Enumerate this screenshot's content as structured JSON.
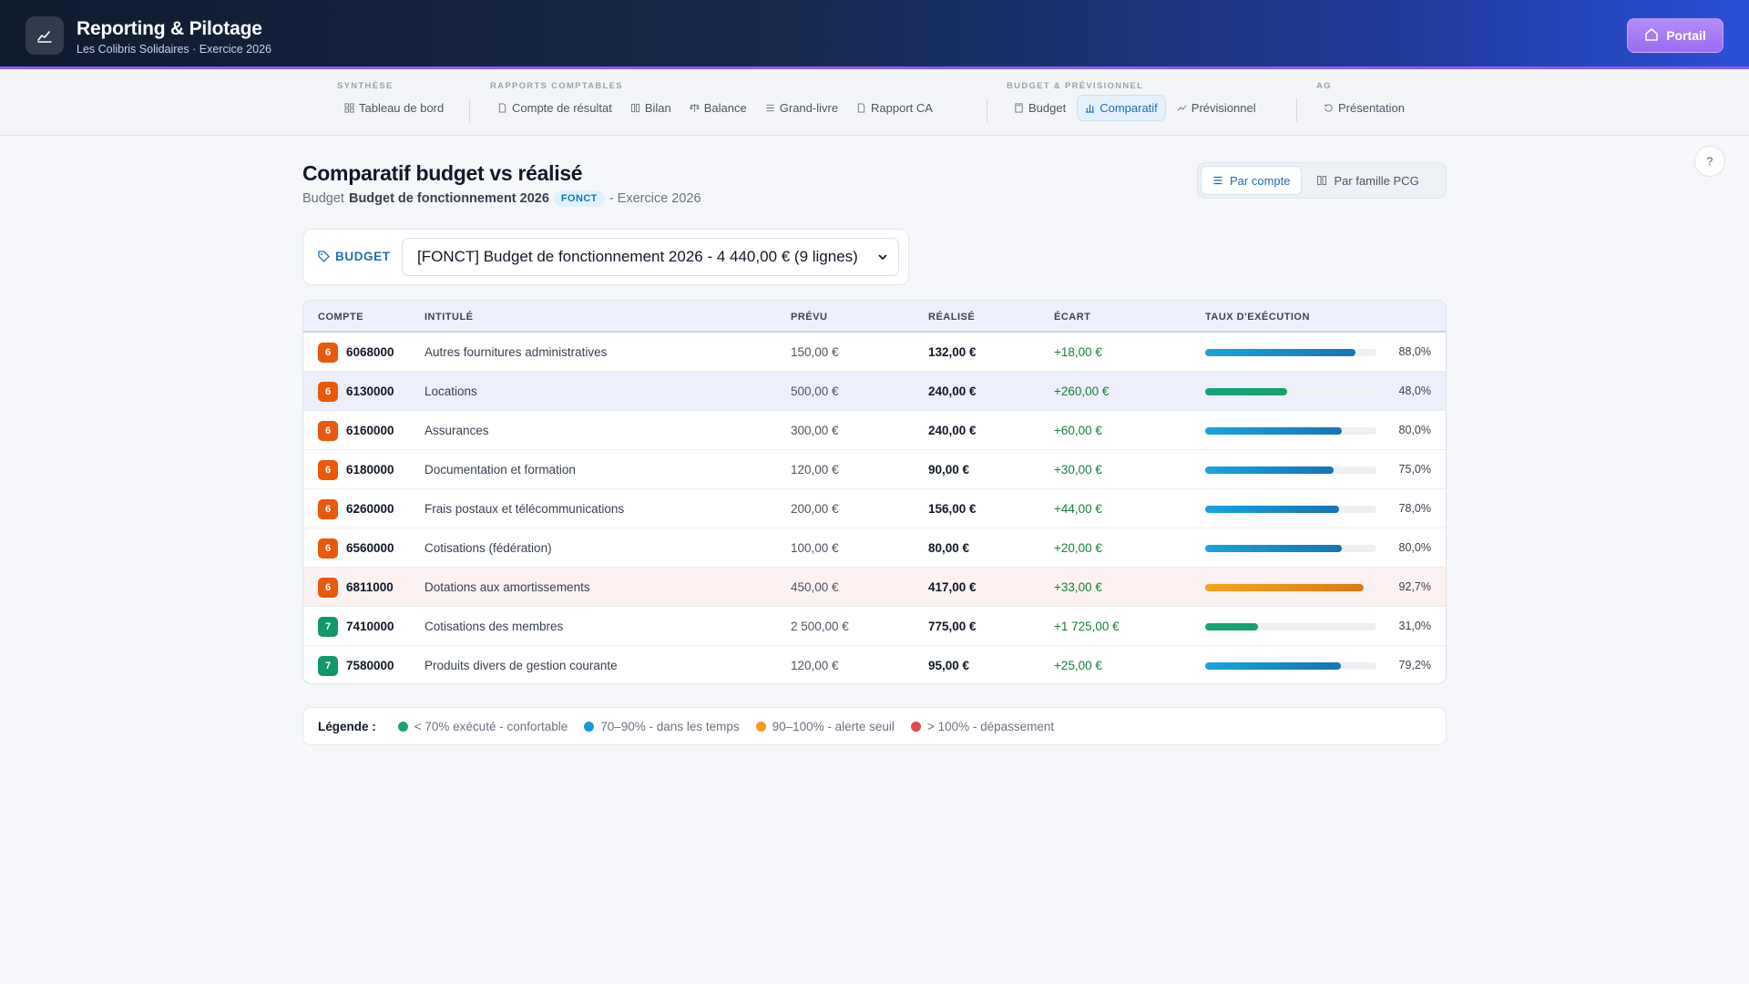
{
  "header": {
    "title": "Reporting & Pilotage",
    "subtitle": "Les Colibris Solidaires · Exercice 2026",
    "portal_label": "Portail"
  },
  "nav": {
    "groups": [
      {
        "title": "SYNTHÈSE",
        "items": [
          {
            "label": "Tableau de bord",
            "icon": "grid-icon"
          }
        ]
      },
      {
        "title": "RAPPORTS COMPTABLES",
        "items": [
          {
            "label": "Compte de résultat",
            "icon": "document-icon"
          },
          {
            "label": "Bilan",
            "icon": "columns-icon"
          },
          {
            "label": "Balance",
            "icon": "scale-icon"
          },
          {
            "label": "Grand-livre",
            "icon": "list-icon"
          },
          {
            "label": "Rapport CA",
            "icon": "document-icon"
          }
        ]
      },
      {
        "title": "BUDGET & PRÉVISIONNEL",
        "items": [
          {
            "label": "Budget",
            "icon": "calculator-icon"
          },
          {
            "label": "Comparatif",
            "icon": "bar-chart-icon",
            "active": true
          },
          {
            "label": "Prévisionnel",
            "icon": "trend-icon"
          }
        ]
      },
      {
        "title": "AG",
        "items": [
          {
            "label": "Présentation",
            "icon": "history-icon"
          }
        ]
      }
    ]
  },
  "help_label": "?",
  "page": {
    "title": "Comparatif budget vs réalisé",
    "sub_prefix": "Budget",
    "budget_name": "Budget de fonctionnement 2026",
    "budget_code": "FONCT",
    "sub_suffix": "- Exercice 2026"
  },
  "view_toggle": {
    "by_account": "Par compte",
    "by_family": "Par famille PCG",
    "selected": "Par compte"
  },
  "budget_selector": {
    "label": "BUDGET",
    "selected": "[FONCT] Budget de fonctionnement 2026 - 4 440,00 € (9 lignes)"
  },
  "table": {
    "columns": [
      "COMPTE",
      "INTITULÉ",
      "PRÉVU",
      "RÉALISÉ",
      "ÉCART",
      "TAUX D'EXÉCUTION"
    ],
    "rows": [
      {
        "class": "6",
        "account": "6068000",
        "label": "Autres fournitures administratives",
        "prevu": "150,00 €",
        "realise": "132,00 €",
        "ecart": "+18,00 €",
        "rate": 88.0,
        "rate_label": "88,0%",
        "status": "in-time"
      },
      {
        "class": "6",
        "account": "6130000",
        "label": "Locations",
        "prevu": "500,00 €",
        "realise": "240,00 €",
        "ecart": "+260,00 €",
        "rate": 48.0,
        "rate_label": "48,0%",
        "status": "comfortable"
      },
      {
        "class": "6",
        "account": "6160000",
        "label": "Assurances",
        "prevu": "300,00 €",
        "realise": "240,00 €",
        "ecart": "+60,00 €",
        "rate": 80.0,
        "rate_label": "80,0%",
        "status": "in-time"
      },
      {
        "class": "6",
        "account": "6180000",
        "label": "Documentation et formation",
        "prevu": "120,00 €",
        "realise": "90,00 €",
        "ecart": "+30,00 €",
        "rate": 75.0,
        "rate_label": "75,0%",
        "status": "in-time"
      },
      {
        "class": "6",
        "account": "6260000",
        "label": "Frais postaux et télécommunications",
        "prevu": "200,00 €",
        "realise": "156,00 €",
        "ecart": "+44,00 €",
        "rate": 78.0,
        "rate_label": "78,0%",
        "status": "in-time"
      },
      {
        "class": "6",
        "account": "6560000",
        "label": "Cotisations (fédération)",
        "prevu": "100,00 €",
        "realise": "80,00 €",
        "ecart": "+20,00 €",
        "rate": 80.0,
        "rate_label": "80,0%",
        "status": "in-time"
      },
      {
        "class": "6",
        "account": "6811000",
        "label": "Dotations aux amortissements",
        "prevu": "450,00 €",
        "realise": "417,00 €",
        "ecart": "+33,00 €",
        "rate": 92.7,
        "rate_label": "92,7%",
        "status": "alert"
      },
      {
        "class": "7",
        "account": "7410000",
        "label": "Cotisations des membres",
        "prevu": "2 500,00 €",
        "realise": "775,00 €",
        "ecart": "+1 725,00 €",
        "rate": 31.0,
        "rate_label": "31,0%",
        "status": "comfortable"
      },
      {
        "class": "7",
        "account": "7580000",
        "label": "Produits divers de gestion courante",
        "prevu": "120,00 €",
        "realise": "95,00 €",
        "ecart": "+25,00 €",
        "rate": 79.2,
        "rate_label": "79,2%",
        "status": "in-time"
      }
    ]
  },
  "legend": {
    "title": "Légende :",
    "items": [
      {
        "label": "< 70% exécuté - confortable",
        "color": "#16a37a"
      },
      {
        "label": "70–90% - dans les temps",
        "color": "#1a9bd7"
      },
      {
        "label": "90–100% - alerte seuil",
        "color": "#f29b1d"
      },
      {
        "label": "> 100% - dépassement",
        "color": "#e5484d"
      }
    ]
  },
  "colors": {
    "comfortable": "#16a37a",
    "in_time": "#1a9bd7",
    "alert": "#f29b1d",
    "overrun": "#e5484d",
    "accent": "#1e6fb8"
  }
}
